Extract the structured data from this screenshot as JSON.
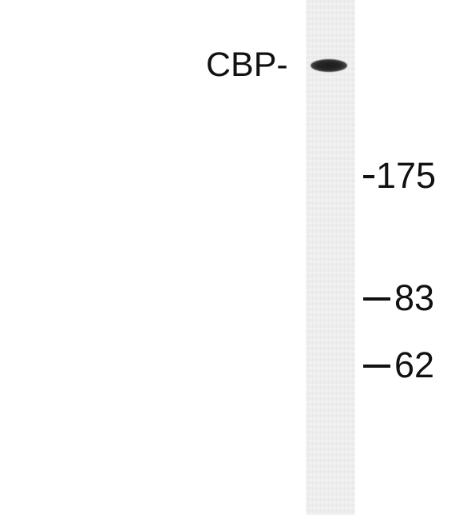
{
  "blot": {
    "protein_label": "CBP-",
    "markers": [
      {
        "value": "175"
      },
      {
        "value": "83"
      },
      {
        "value": "62"
      }
    ]
  },
  "colors": {
    "background": "#ffffff",
    "lane": "#efefef",
    "band": "#262626",
    "text": "#111111"
  }
}
